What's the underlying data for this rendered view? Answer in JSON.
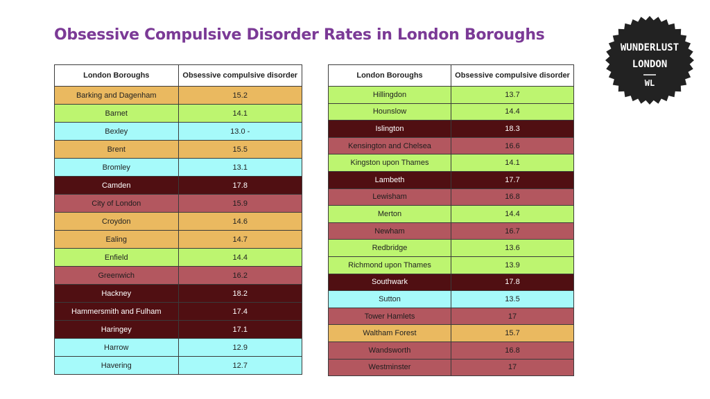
{
  "chart_data": {
    "type": "table",
    "title": "Obsessive Compulsive Disorder Rates in London Boroughs",
    "columns": [
      "London Boroughs",
      "Obsessive compulsive disorder"
    ],
    "colors": {
      "yellow": "#eab960",
      "green": "#bdf570",
      "cyan": "#a6fafa",
      "red": "#b3575f",
      "dark": "#500f12"
    },
    "left_rows": [
      {
        "borough": "Barking and Dagenham",
        "value": "15.2",
        "color": "yellow"
      },
      {
        "borough": "Barnet",
        "value": "14.1",
        "color": "green"
      },
      {
        "borough": "Bexley",
        "value": "13.0 -",
        "color": "cyan"
      },
      {
        "borough": "Brent",
        "value": "15.5",
        "color": "yellow"
      },
      {
        "borough": "Bromley",
        "value": "13.1",
        "color": "cyan"
      },
      {
        "borough": "Camden",
        "value": "17.8",
        "color": "dark"
      },
      {
        "borough": "City of London",
        "value": "15.9",
        "color": "red"
      },
      {
        "borough": "Croydon",
        "value": "14.6",
        "color": "yellow"
      },
      {
        "borough": "Ealing",
        "value": "14.7",
        "color": "yellow"
      },
      {
        "borough": "Enfield",
        "value": "14.4",
        "color": "green"
      },
      {
        "borough": "Greenwich",
        "value": "16.2",
        "color": "red"
      },
      {
        "borough": "Hackney",
        "value": "18.2",
        "color": "dark"
      },
      {
        "borough": "Hammersmith and Fulham",
        "value": "17.4",
        "color": "dark"
      },
      {
        "borough": "Haringey",
        "value": "17.1",
        "color": "dark"
      },
      {
        "borough": "Harrow",
        "value": "12.9",
        "color": "cyan"
      },
      {
        "borough": "Havering",
        "value": "12.7",
        "color": "cyan"
      }
    ],
    "right_rows": [
      {
        "borough": "Hillingdon",
        "value": "13.7",
        "color": "green"
      },
      {
        "borough": "Hounslow",
        "value": "14.4",
        "color": "green"
      },
      {
        "borough": "Islington",
        "value": "18.3",
        "color": "dark"
      },
      {
        "borough": "Kensington and Chelsea",
        "value": "16.6",
        "color": "red"
      },
      {
        "borough": "Kingston upon Thames",
        "value": "14.1",
        "color": "green"
      },
      {
        "borough": "Lambeth",
        "value": "17.7",
        "color": "dark"
      },
      {
        "borough": "Lewisham",
        "value": "16.8",
        "color": "red"
      },
      {
        "borough": "Merton",
        "value": "14.4",
        "color": "green"
      },
      {
        "borough": "Newham",
        "value": "16.7",
        "color": "red"
      },
      {
        "borough": "Redbridge",
        "value": "13.6",
        "color": "green"
      },
      {
        "borough": "Richmond upon Thames",
        "value": "13.9",
        "color": "green"
      },
      {
        "borough": "Southwark",
        "value": "17.8",
        "color": "dark"
      },
      {
        "borough": "Sutton",
        "value": "13.5",
        "color": "cyan"
      },
      {
        "borough": "Tower Hamlets",
        "value": "17",
        "color": "red"
      },
      {
        "borough": "Waltham Forest",
        "value": "15.7",
        "color": "yellow"
      },
      {
        "borough": "Wandsworth",
        "value": "16.8",
        "color": "red"
      },
      {
        "borough": "Westminster",
        "value": "17",
        "color": "red"
      }
    ]
  },
  "logo": {
    "line1": "WUNDERLUST",
    "line2": "LONDON",
    "mark": "WL",
    "icon": "wunderlust-london-badge-icon",
    "bg_color": "#222222",
    "text_color": "#ffffff"
  }
}
